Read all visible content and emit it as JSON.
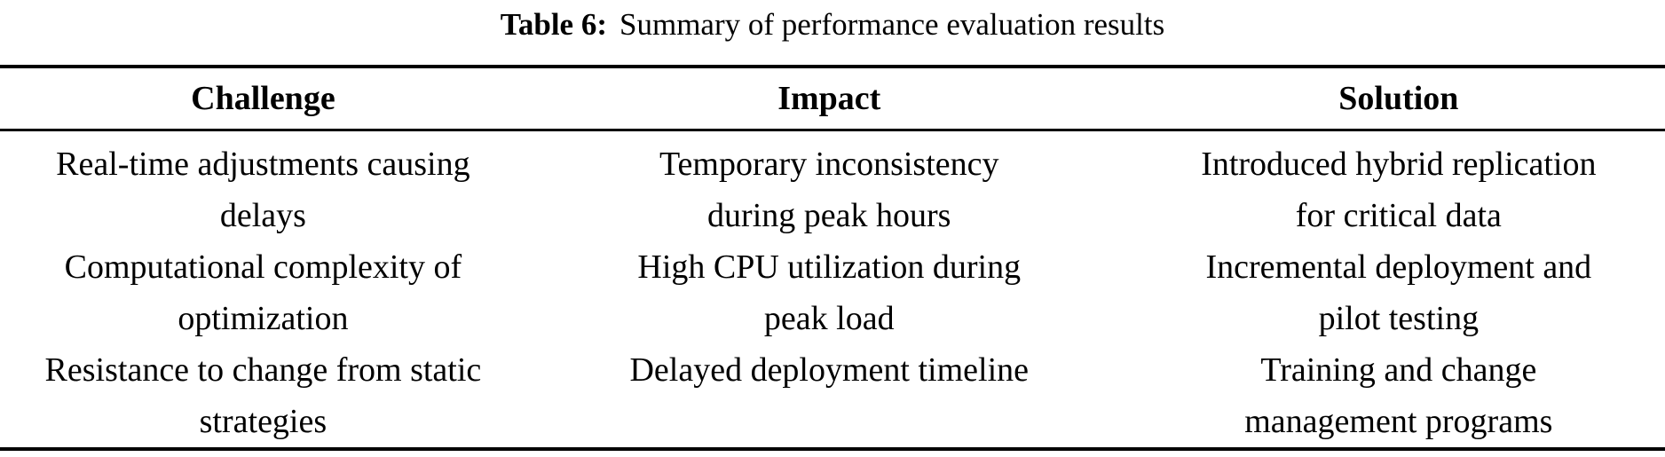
{
  "caption": {
    "label": "Table 6:",
    "text": "Summary of performance evaluation results"
  },
  "table": {
    "headers": [
      "Challenge",
      "Impact",
      "Solution"
    ],
    "rows": [
      {
        "challenge": [
          "Real-time adjustments causing",
          "delays"
        ],
        "impact": [
          "Temporary inconsistency",
          "during peak hours"
        ],
        "solution": [
          "Introduced hybrid replication",
          "for critical data"
        ]
      },
      {
        "challenge": [
          "Computational complexity of",
          "optimization"
        ],
        "impact": [
          "High CPU utilization during",
          "peak load"
        ],
        "solution": [
          "Incremental deployment and",
          "pilot testing"
        ]
      },
      {
        "challenge": [
          "Resistance to change from static",
          "strategies"
        ],
        "impact": [
          "Delayed deployment timeline"
        ],
        "solution": [
          "Training and change",
          "management programs"
        ]
      }
    ]
  },
  "colors": {
    "text": "#000000",
    "background": "#ffffff",
    "rule": "#000000"
  }
}
